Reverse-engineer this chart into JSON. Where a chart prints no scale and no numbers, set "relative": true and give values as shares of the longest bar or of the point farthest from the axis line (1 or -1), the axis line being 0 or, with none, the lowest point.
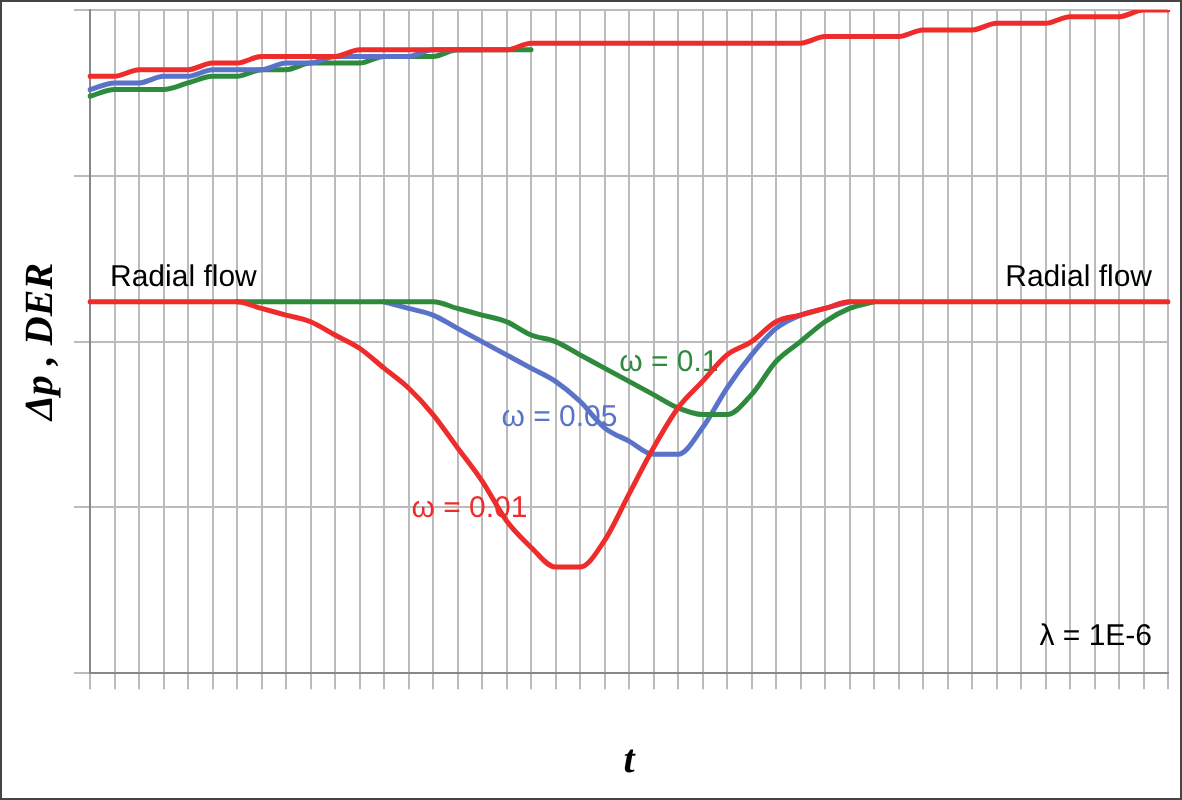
{
  "chart_data": {
    "type": "line",
    "relative": true,
    "xlabel": "t",
    "ylabel": "Δp , DER",
    "grid": true,
    "legend": false,
    "marker": "none",
    "line_style": "solid",
    "categories": [
      null,
      null,
      null,
      null,
      null,
      null,
      null,
      null,
      null,
      null,
      null,
      null,
      null,
      null,
      null,
      null,
      null,
      null,
      null,
      null,
      null,
      null,
      null,
      null,
      null,
      null,
      null,
      null,
      null,
      null,
      null,
      null,
      null,
      null,
      null,
      null,
      null,
      null,
      null,
      null,
      null,
      null,
      null,
      null,
      null
    ],
    "annotations": [
      "Radial flow",
      "Radial flow",
      "λ = 1E-6"
    ],
    "series": [
      {
        "color": "#2e8b3e",
        "values": [
          0.87,
          0.88,
          0.88,
          0.88,
          0.89,
          0.9,
          0.9,
          0.91,
          0.91,
          0.92,
          0.92,
          0.92,
          0.93,
          0.93,
          0.93,
          0.94,
          0.94,
          0.94,
          0.94,
          null,
          null,
          null,
          null,
          null,
          null,
          null,
          null,
          null,
          null,
          null,
          null,
          null,
          null,
          null,
          null,
          null,
          null,
          null,
          null,
          null,
          null,
          null,
          null,
          null,
          null
        ]
      },
      {
        "color": "#5a72c8",
        "values": [
          0.88,
          0.89,
          0.89,
          0.9,
          0.9,
          0.91,
          0.91,
          0.91,
          0.92,
          0.92,
          0.93,
          0.93,
          0.93,
          0.93,
          0.94,
          0.94,
          0.94,
          null,
          null,
          null,
          null,
          null,
          null,
          null,
          null,
          null,
          null,
          null,
          null,
          null,
          null,
          null,
          null,
          null,
          null,
          null,
          null,
          null,
          null,
          null,
          null,
          null,
          null,
          null,
          null
        ]
      },
      {
        "color": "#ee2c2c",
        "values": [
          0.9,
          0.9,
          0.91,
          0.91,
          0.91,
          0.92,
          0.92,
          0.93,
          0.93,
          0.93,
          0.93,
          0.94,
          0.94,
          0.94,
          0.94,
          0.94,
          0.94,
          0.94,
          0.95,
          0.95,
          0.95,
          0.95,
          0.95,
          0.95,
          0.95,
          0.95,
          0.95,
          0.95,
          0.95,
          0.95,
          0.96,
          0.96,
          0.96,
          0.96,
          0.97,
          0.97,
          0.97,
          0.98,
          0.98,
          0.98,
          0.99,
          0.99,
          0.99,
          1.0,
          1.0
        ]
      },
      {
        "name": "ω = 0.05",
        "color": "#5a72c8",
        "values": [
          null,
          null,
          null,
          null,
          null,
          null,
          null,
          null,
          null,
          null,
          null,
          null,
          0.56,
          0.55,
          0.54,
          0.52,
          0.5,
          0.48,
          0.46,
          0.44,
          0.41,
          0.37,
          0.35,
          0.33,
          0.33,
          0.37,
          0.43,
          0.48,
          0.52,
          0.54,
          0.55,
          0.56,
          null,
          null,
          null,
          null,
          null,
          null,
          null,
          null,
          null,
          null,
          null,
          null,
          null
        ]
      },
      {
        "name": "ω = 0.1",
        "color": "#2e8b3e",
        "values": [
          null,
          null,
          null,
          null,
          null,
          null,
          0.56,
          0.56,
          0.56,
          0.56,
          0.56,
          0.56,
          0.56,
          0.56,
          0.56,
          0.55,
          0.54,
          0.53,
          0.51,
          0.5,
          0.48,
          0.46,
          0.44,
          0.42,
          0.4,
          0.39,
          0.39,
          0.42,
          0.47,
          0.5,
          0.53,
          0.55,
          0.56,
          null,
          null,
          null,
          null,
          null,
          null,
          null,
          null,
          null,
          null,
          null,
          null
        ]
      },
      {
        "name": "ω = 0.01",
        "color": "#ee2c2c",
        "values": [
          0.56,
          0.56,
          0.56,
          0.56,
          0.56,
          0.56,
          0.56,
          0.55,
          0.54,
          0.53,
          0.51,
          0.49,
          0.46,
          0.43,
          0.39,
          0.34,
          0.29,
          0.23,
          0.19,
          0.16,
          0.16,
          0.2,
          0.27,
          0.34,
          0.4,
          0.44,
          0.48,
          0.5,
          0.53,
          0.54,
          0.55,
          0.56,
          0.56,
          0.56,
          0.56,
          0.56,
          0.56,
          0.56,
          0.56,
          0.56,
          0.56,
          0.56,
          0.56,
          0.56,
          0.56
        ]
      }
    ]
  }
}
